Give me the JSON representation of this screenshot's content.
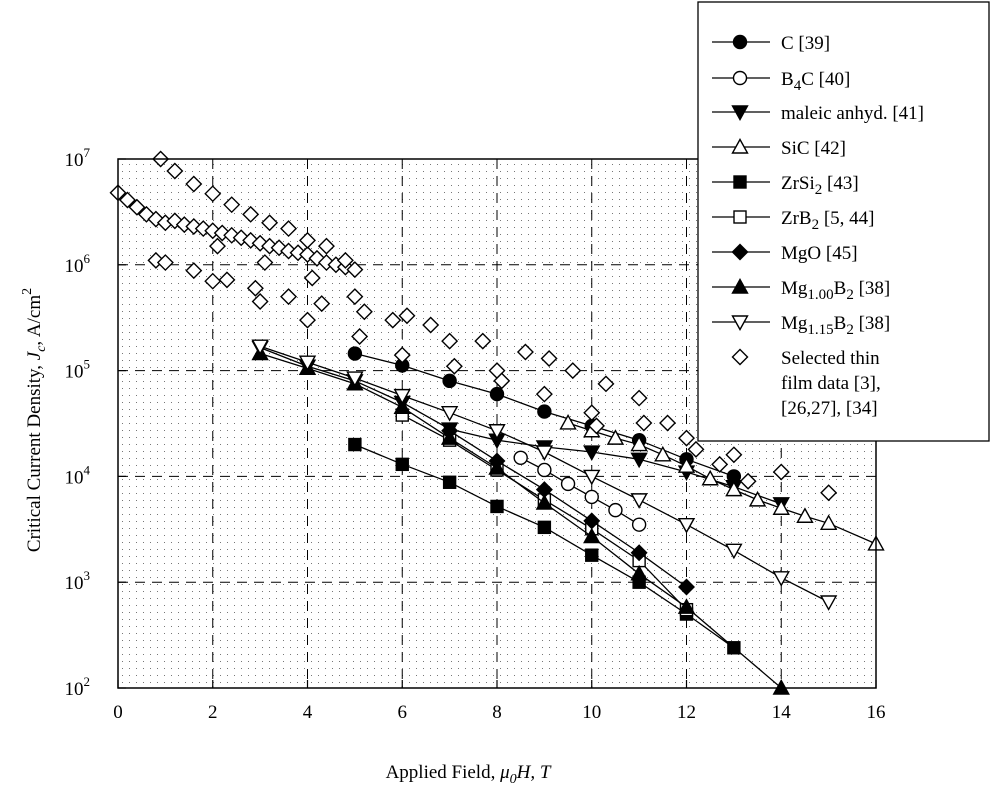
{
  "chart_data": {
    "type": "scatter",
    "title": "",
    "xlabel": {
      "pre": "Applied Field, ",
      "sym": "μ",
      "sub": "0",
      "post": "H, T"
    },
    "ylabel": {
      "pre": "Critical Current Density, ",
      "sym": "J",
      "sub": "c",
      "post": ", A/cm",
      "sup": "2"
    },
    "x_range": [
      0,
      16
    ],
    "y_range": [
      100,
      10000000
    ],
    "y_scale": "log",
    "x_ticks": [
      "0",
      "2",
      "4",
      "6",
      "8",
      "10",
      "12",
      "14",
      "16"
    ],
    "y_ticks": [
      {
        "base": "10",
        "exp": "2"
      },
      {
        "base": "10",
        "exp": "3"
      },
      {
        "base": "10",
        "exp": "4"
      },
      {
        "base": "10",
        "exp": "5"
      },
      {
        "base": "10",
        "exp": "6"
      },
      {
        "base": "10",
        "exp": "7"
      }
    ],
    "grid": true,
    "legend_position": "top-right",
    "series": [
      {
        "name": "C [39]",
        "marker": "circle",
        "filled": true,
        "connected": true,
        "x": [
          5,
          6,
          7,
          8,
          9,
          10,
          11,
          12,
          13
        ],
        "y": [
          145000,
          112000,
          80000,
          60000,
          41000,
          30000,
          22000,
          14500,
          10000
        ]
      },
      {
        "name": "B4C [40]",
        "marker": "circle",
        "filled": false,
        "connected": true,
        "x": [
          8.5,
          9,
          9.5,
          10,
          10.5,
          11
        ],
        "y": [
          15000,
          11500,
          8500,
          6400,
          4800,
          3500
        ]
      },
      {
        "name": "maleic anhyd. [41]",
        "marker": "triangle-down",
        "filled": true,
        "connected": true,
        "x": [
          3,
          4,
          5,
          6,
          7,
          8,
          9,
          10,
          11,
          12,
          13,
          14
        ],
        "y": [
          165000,
          110000,
          80000,
          50000,
          28000,
          22000,
          19000,
          17000,
          14500,
          11000,
          8000,
          5500
        ]
      },
      {
        "name": "SiC [42]",
        "marker": "triangle-up",
        "filled": false,
        "connected": true,
        "x": [
          9.5,
          10,
          10.5,
          11,
          11.5,
          12,
          12.5,
          13,
          13.5,
          14,
          14.5,
          15,
          16
        ],
        "y": [
          32000,
          27000,
          23000,
          20000,
          16000,
          12500,
          9500,
          7500,
          6000,
          5000,
          4200,
          3600,
          2300
        ]
      },
      {
        "name": "ZrSi2 [43]",
        "marker": "square",
        "filled": true,
        "connected": true,
        "x": [
          5,
          6,
          7,
          8,
          9,
          10,
          11,
          12,
          13
        ],
        "y": [
          20000,
          13000,
          8800,
          5200,
          3300,
          1800,
          1000,
          500,
          240
        ]
      },
      {
        "name": "ZrB2 [5, 44]",
        "marker": "square",
        "filled": false,
        "connected": true,
        "x": [
          6,
          7,
          8,
          9,
          10,
          11,
          12
        ],
        "y": [
          38000,
          22000,
          11500,
          6000,
          3200,
          1600,
          550
        ]
      },
      {
        "name": "MgO [45]",
        "marker": "diamond",
        "filled": true,
        "connected": true,
        "x": [
          7,
          8,
          9,
          10,
          11,
          12
        ],
        "y": [
          27000,
          14000,
          7500,
          3800,
          1900,
          900
        ]
      },
      {
        "name": "Mg1.00B2 [38]",
        "marker": "triangle-up",
        "filled": true,
        "connected": true,
        "x": [
          3,
          4,
          5,
          6,
          7,
          8,
          9,
          10,
          11,
          12,
          14
        ],
        "y": [
          145000,
          105000,
          75000,
          45000,
          23000,
          12000,
          5600,
          2700,
          1200,
          580,
          100
        ]
      },
      {
        "name": "Mg1.15B2 [38]",
        "marker": "triangle-down",
        "filled": false,
        "connected": true,
        "x": [
          3,
          4,
          5,
          6,
          7,
          8,
          9,
          10,
          11,
          12,
          13,
          14,
          15
        ],
        "y": [
          170000,
          120000,
          85000,
          58000,
          40000,
          27000,
          17000,
          10000,
          6000,
          3500,
          2000,
          1100,
          650
        ]
      },
      {
        "name": "Selected thin film data [3], [26,27], [34]",
        "marker": "diamond",
        "filled": false,
        "connected": false,
        "x": [
          0,
          0.2,
          0.4,
          0.6,
          0.8,
          1.0,
          1.2,
          1.4,
          1.6,
          1.8,
          2.0,
          2.2,
          2.4,
          2.6,
          2.8,
          3.0,
          3.2,
          3.4,
          3.6,
          3.8,
          4.0,
          4.2,
          4.4,
          4.6,
          4.8,
          5.0,
          0.9,
          1.2,
          1.6,
          2.0,
          2.4,
          2.8,
          3.2,
          3.6,
          4.0,
          4.4,
          4.8,
          0.8,
          1.0,
          1.6,
          2.0,
          2.1,
          2.3,
          2.9,
          3.0,
          3.1,
          3.6,
          4.0,
          4.1,
          4.3,
          5.0,
          5.1,
          5.2,
          5.8,
          6.0,
          6.1,
          6.6,
          7.0,
          7.1,
          7.7,
          8.0,
          8.1,
          8.6,
          9.0,
          9.1,
          9.6,
          10.0,
          10.1,
          10.3,
          11.0,
          11.1,
          11.6,
          12.0,
          12.2,
          12.7,
          13.0,
          13.3,
          14.0,
          15.0
        ],
        "y": [
          4800000,
          4100000,
          3500000,
          3000000,
          2700000,
          2500000,
          2600000,
          2400000,
          2300000,
          2200000,
          2100000,
          2000000,
          1900000,
          1800000,
          1700000,
          1600000,
          1500000,
          1450000,
          1350000,
          1300000,
          1250000,
          1150000,
          1050000,
          1000000,
          950000,
          900000,
          10000000,
          7700000,
          5800000,
          4700000,
          3700000,
          3000000,
          2500000,
          2200000,
          1700000,
          1500000,
          1100000,
          1100000,
          1050000,
          880000,
          700000,
          1500000,
          720000,
          600000,
          450000,
          1050000,
          500000,
          300000,
          750000,
          430000,
          500000,
          210000,
          360000,
          300000,
          140000,
          330000,
          270000,
          190000,
          110000,
          190000,
          100000,
          80000,
          150000,
          60000,
          130000,
          100000,
          40000,
          30000,
          75000,
          55000,
          32000,
          32000,
          23000,
          18000,
          13000,
          16000,
          9000,
          11000,
          7000
        ]
      }
    ]
  },
  "legend": {
    "items": [
      {
        "pre": "C [39]"
      },
      {
        "pre": "B",
        "sub": "4",
        "post": "C [40]"
      },
      {
        "pre": "maleic anhyd. [41]"
      },
      {
        "pre": "SiC [42]"
      },
      {
        "pre": "ZrSi",
        "sub": "2",
        "post": " [43]"
      },
      {
        "pre": "ZrB",
        "sub": "2",
        "post": " [5, 44]"
      },
      {
        "pre": "MgO [45]"
      },
      {
        "pre": "Mg",
        "sub": "1.00",
        "post": "B",
        "sub2": "2",
        "post2": " [38]"
      },
      {
        "pre": "Mg",
        "sub": "1.15",
        "post": "B",
        "sub2": "2",
        "post2": " [38]"
      },
      {
        "pre": "Selected thin",
        "line2": "film data [3],",
        "line3": "[26,27], [34]"
      }
    ]
  }
}
